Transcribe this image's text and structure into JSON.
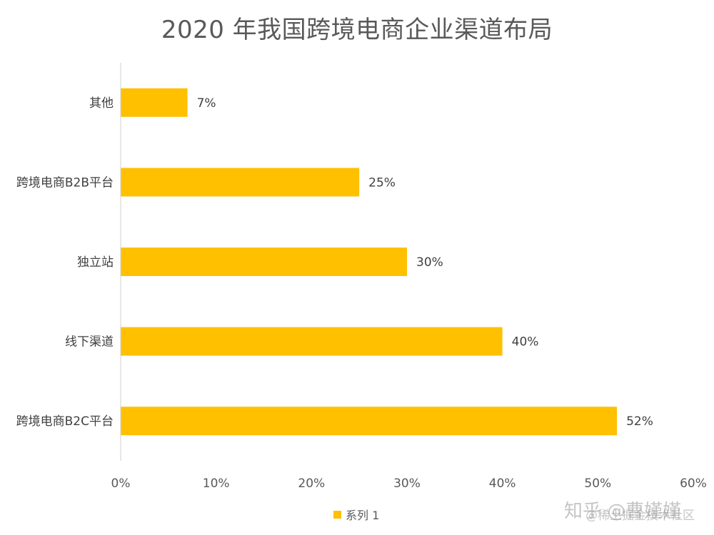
{
  "chart_data": {
    "type": "bar",
    "orientation": "horizontal",
    "title": "2020 年我国跨境电商企业渠道布局",
    "categories": [
      "跨境电商B2C平台",
      "线下渠道",
      "独立站",
      "跨境电商B2B平台",
      "其他"
    ],
    "series": [
      {
        "name": "系列 1",
        "values": [
          52,
          40,
          30,
          25,
          7
        ]
      }
    ],
    "data_labels": [
      "52%",
      "40%",
      "30%",
      "25%",
      "7%"
    ],
    "xlim": [
      0,
      60
    ],
    "x_ticks": [
      0,
      10,
      20,
      30,
      40,
      50,
      60
    ],
    "x_tick_labels": [
      "0%",
      "10%",
      "20%",
      "30%",
      "40%",
      "50%",
      "60%"
    ],
    "grid": false,
    "legend": "bottom",
    "bar_color": "#FFC000"
  },
  "watermark": {
    "main": "知乎 @曹嫤嫤",
    "sub": "@稀土掘金技术社区"
  }
}
